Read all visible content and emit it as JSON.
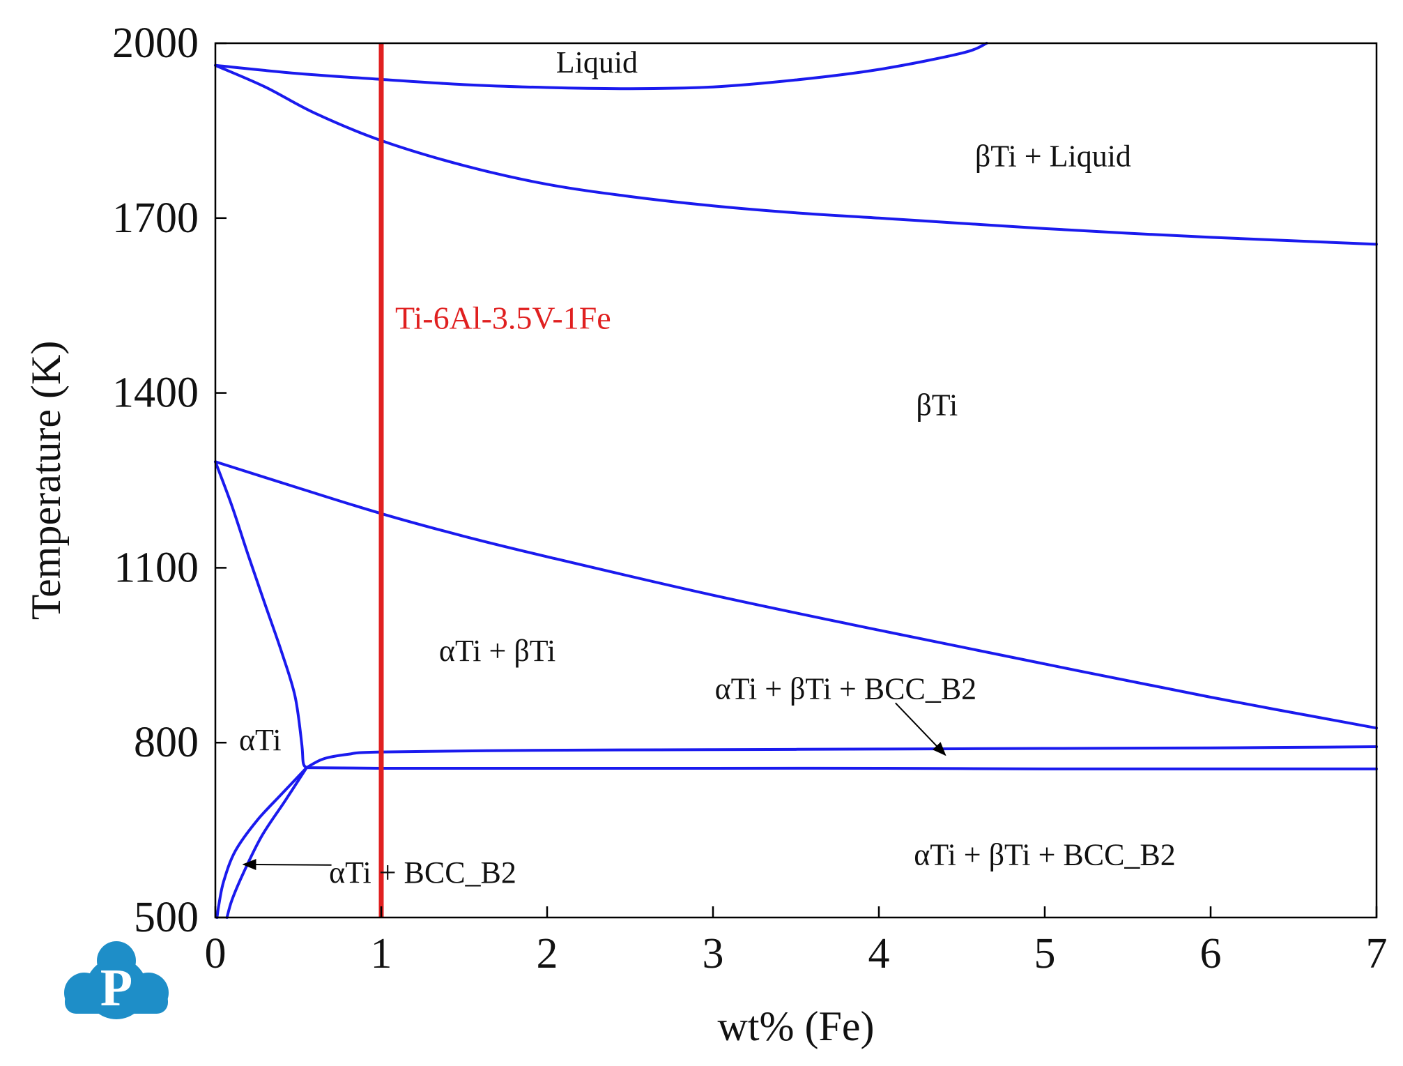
{
  "chart_data": {
    "type": "line",
    "title": "",
    "xlabel": "wt% (Fe)",
    "ylabel": "Temperature (K)",
    "xlim": [
      0,
      7
    ],
    "ylim": [
      500,
      2000
    ],
    "x_ticks": [
      "0",
      "1",
      "2",
      "3",
      "4",
      "5",
      "6",
      "7"
    ],
    "y_ticks": [
      "500",
      "800",
      "1100",
      "1400",
      "1700",
      "2000"
    ],
    "grid": false,
    "legend": "none",
    "line_color": "#1a1aee",
    "series": [
      {
        "points": [
          [
            0,
            1962
          ],
          [
            0.5,
            1948
          ],
          [
            1,
            1938
          ],
          [
            1.5,
            1929
          ],
          [
            2,
            1924
          ],
          [
            2.5,
            1922
          ],
          [
            3,
            1925
          ],
          [
            3.5,
            1937
          ],
          [
            4,
            1955
          ],
          [
            4.5,
            1983
          ],
          [
            4.65,
            2000
          ]
        ]
      },
      {
        "points": [
          [
            0,
            1962
          ],
          [
            0.3,
            1925
          ],
          [
            0.6,
            1880
          ],
          [
            1,
            1833
          ],
          [
            1.5,
            1790
          ],
          [
            2,
            1758
          ],
          [
            2.5,
            1737
          ],
          [
            3,
            1721
          ],
          [
            3.5,
            1709
          ],
          [
            4,
            1700
          ],
          [
            4.5,
            1691
          ],
          [
            5,
            1682
          ],
          [
            5.5,
            1674
          ],
          [
            6,
            1667
          ],
          [
            6.5,
            1661
          ],
          [
            7,
            1655
          ]
        ]
      },
      {
        "points": [
          [
            0,
            1282
          ],
          [
            0.5,
            1237
          ],
          [
            1,
            1193
          ],
          [
            1.5,
            1154
          ],
          [
            2,
            1119
          ],
          [
            3,
            1053
          ],
          [
            4,
            993
          ],
          [
            5,
            935
          ],
          [
            6,
            878
          ],
          [
            7,
            825
          ]
        ]
      },
      {
        "points": [
          [
            0,
            1282
          ],
          [
            0.1,
            1206
          ],
          [
            0.2,
            1120
          ],
          [
            0.3,
            1037
          ],
          [
            0.4,
            955
          ],
          [
            0.48,
            880
          ],
          [
            0.52,
            800
          ],
          [
            0.53,
            765
          ],
          [
            0.55,
            757
          ]
        ]
      },
      {
        "points": [
          [
            0.55,
            757
          ],
          [
            0.65,
            772
          ],
          [
            0.8,
            780
          ],
          [
            1,
            784
          ],
          [
            2,
            787
          ],
          [
            3,
            788
          ],
          [
            4,
            789
          ],
          [
            5,
            790
          ],
          [
            6,
            791
          ],
          [
            7,
            793
          ]
        ]
      },
      {
        "points": [
          [
            0.55,
            757
          ],
          [
            1,
            756
          ],
          [
            2,
            756
          ],
          [
            3,
            756
          ],
          [
            4,
            756
          ],
          [
            5,
            755
          ],
          [
            6,
            755
          ],
          [
            7,
            755
          ]
        ]
      },
      {
        "points": [
          [
            0.55,
            757
          ],
          [
            0.4,
            712
          ],
          [
            0.25,
            666
          ],
          [
            0.12,
            614
          ],
          [
            0.05,
            562
          ],
          [
            0.02,
            520
          ],
          [
            0.01,
            500
          ]
        ]
      },
      {
        "points": [
          [
            0.55,
            757
          ],
          [
            0.42,
            700
          ],
          [
            0.28,
            640
          ],
          [
            0.17,
            577
          ],
          [
            0.1,
            530
          ],
          [
            0.07,
            500
          ]
        ]
      }
    ],
    "alloy_line": {
      "x": 1,
      "label": "Ti-6Al-3.5V-1Fe",
      "color": "#e02020"
    },
    "regions": [
      {
        "label": "Liquid",
        "x": 2.3,
        "y": 1968
      },
      {
        "label": "βTi + Liquid",
        "x": 5.05,
        "y": 1807
      },
      {
        "label": "βTi",
        "x": 4.35,
        "y": 1380
      },
      {
        "label": "αTi + βTi",
        "x": 1.7,
        "y": 958
      },
      {
        "label": "αTi + βTi + BCC_B2",
        "x": 3.8,
        "y": 893
      },
      {
        "label": "αTi",
        "x": 0.27,
        "y": 805
      },
      {
        "label": "αTi + BCC_B2",
        "x": 1.25,
        "y": 578
      },
      {
        "label": "αTi + βTi + BCC_B2",
        "x": 5.0,
        "y": 608
      }
    ],
    "arrows": [
      {
        "from": [
          4.1,
          868
        ],
        "to": [
          4.4,
          779
        ]
      },
      {
        "from": [
          0.7,
          590
        ],
        "to": [
          0.17,
          591
        ]
      }
    ]
  }
}
